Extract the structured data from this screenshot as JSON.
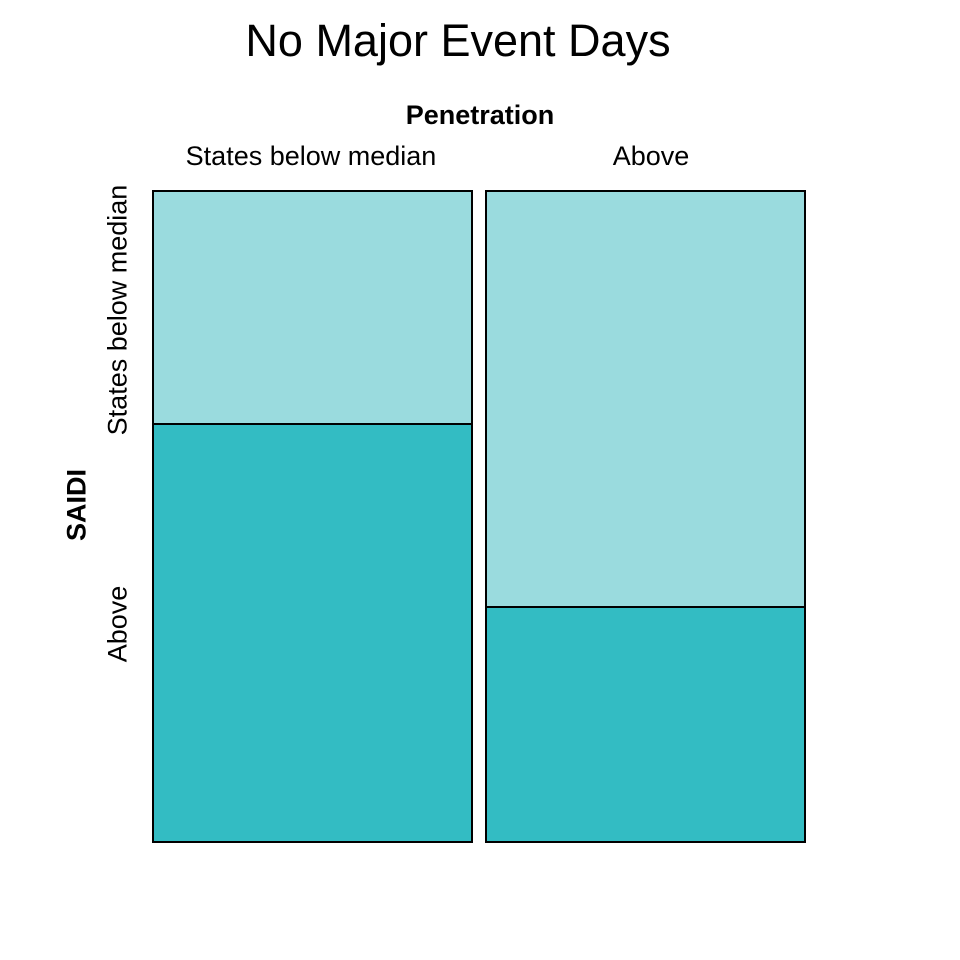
{
  "page": {
    "background": "#ffffff"
  },
  "chart_data": {
    "type": "mosaic",
    "title": "No Major Event Days",
    "xlabel": "Penetration",
    "ylabel": "SAIDI",
    "x_categories": [
      "States below median",
      "Above"
    ],
    "y_categories": [
      "States below median",
      "Above"
    ],
    "legend": "none",
    "border_color": "#000000",
    "cell_colors": {
      "States below median": "#9ADBDE",
      "Above": "#33BCC3"
    },
    "columns": [
      {
        "x": "States below median",
        "width_fraction": 0.5,
        "cells": [
          {
            "y": "States below median",
            "fraction": 0.36
          },
          {
            "y": "Above",
            "fraction": 0.64
          }
        ]
      },
      {
        "x": "Above",
        "width_fraction": 0.5,
        "cells": [
          {
            "y": "States below median",
            "fraction": 0.64
          },
          {
            "y": "Above",
            "fraction": 0.36
          }
        ]
      }
    ]
  }
}
